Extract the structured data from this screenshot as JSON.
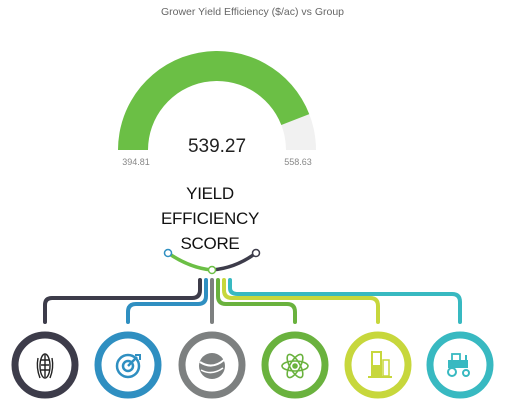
{
  "title": "Grower Yield Efficiency ($/ac) vs Group",
  "chart_data": {
    "type": "gauge",
    "value": 539.27,
    "value_label": "539.27",
    "min": 394.81,
    "min_label": "394.81",
    "max": 558.63,
    "max_label": "558.63",
    "fill_color": "#6bbf45",
    "track_color": "#f1f1f1"
  },
  "score_label": {
    "line1": "YIELD",
    "line2": "EFFICIENCY",
    "line3": "SCORE"
  },
  "categories": [
    {
      "icon": "corn-icon",
      "color": "#3d3c4a"
    },
    {
      "icon": "target-icon",
      "color": "#2f8fc1"
    },
    {
      "icon": "soil-icon",
      "color": "#7d8080"
    },
    {
      "icon": "atom-icon",
      "color": "#6ab23e"
    },
    {
      "icon": "test-tube-icon",
      "color": "#c7d73c"
    },
    {
      "icon": "tractor-icon",
      "color": "#38b9c1"
    }
  ]
}
